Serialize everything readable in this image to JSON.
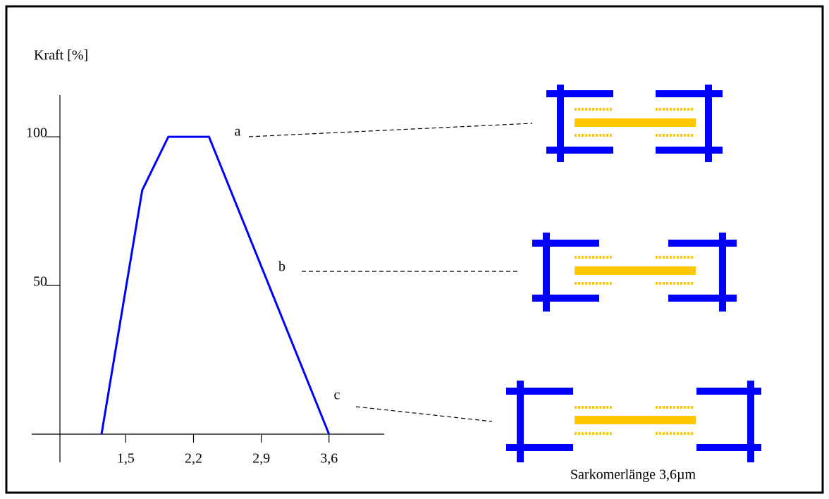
{
  "chart_data": {
    "type": "line",
    "y_label": "Kraft [%]",
    "x": [
      1.25,
      1.67,
      1.94,
      2.36,
      3.6
    ],
    "series": [
      {
        "color": "#0000ff",
        "values": [
          0,
          82,
          100,
          100,
          0
        ]
      }
    ],
    "xlim": [
      0.82,
      4.17
    ],
    "ylim": [
      0,
      114
    ],
    "xticks": [
      {
        "value": 1.5,
        "label": "1,5"
      },
      {
        "value": 2.2,
        "label": "2,2"
      },
      {
        "value": 2.9,
        "label": "2,9"
      },
      {
        "value": 3.6,
        "label": "3,6"
      }
    ],
    "yticks": [
      50,
      100
    ],
    "annotations": [
      "a",
      "b",
      "c"
    ],
    "caption": "Sarkomerlänge 3,6µm"
  }
}
